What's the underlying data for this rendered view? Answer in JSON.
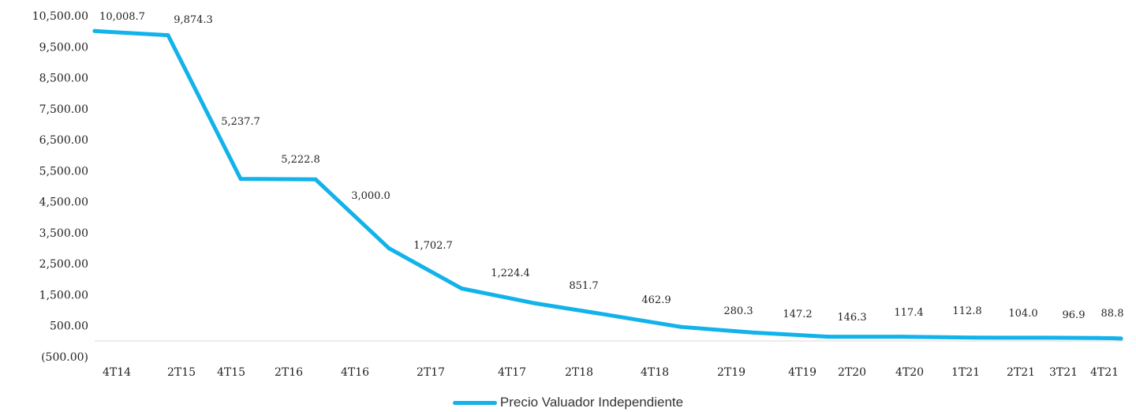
{
  "chart_data": {
    "type": "line",
    "categories": [
      "4T14",
      "2T15",
      "4T15",
      "2T16",
      "4T16",
      "2T17",
      "4T17",
      "2T18",
      "4T18",
      "2T19",
      "4T19",
      "2T20",
      "4T20",
      "1T21",
      "2T21",
      "3T21",
      "4T21"
    ],
    "series": [
      {
        "name": "Precio Valuador Independiente",
        "values": [
          10008.7,
          9874.3,
          5237.7,
          5222.8,
          3000.0,
          1702.7,
          1224.4,
          851.7,
          462.9,
          280.3,
          147.2,
          146.3,
          117.4,
          112.8,
          104.0,
          96.9,
          88.8
        ],
        "labels": [
          "10,008.7",
          "9,874.3",
          "5,237.7",
          "5,222.8",
          "3,000.0",
          "1,702.7",
          "1,224.4",
          "851.7",
          "462.9",
          "280.3",
          "147.2",
          "146.3",
          "117.4",
          "112.8",
          "104.0",
          "96.9",
          "88.8"
        ],
        "color": "#12b2ea"
      }
    ],
    "yticks": [
      "10,500.00",
      "9,500.00",
      "8,500.00",
      "7,500.00",
      "6,500.00",
      "5,500.00",
      "4,500.00",
      "3,500.00",
      "2,500.00",
      "1,500.00",
      "500.00",
      "(500.00)"
    ],
    "ytick_values": [
      10500,
      9500,
      8500,
      7500,
      6500,
      5500,
      4500,
      3500,
      2500,
      1500,
      500,
      -500
    ],
    "ylim": [
      -500,
      10500
    ],
    "grid": false,
    "legend_position": "bottom-center",
    "title": "",
    "xlabel": "",
    "ylabel": ""
  }
}
